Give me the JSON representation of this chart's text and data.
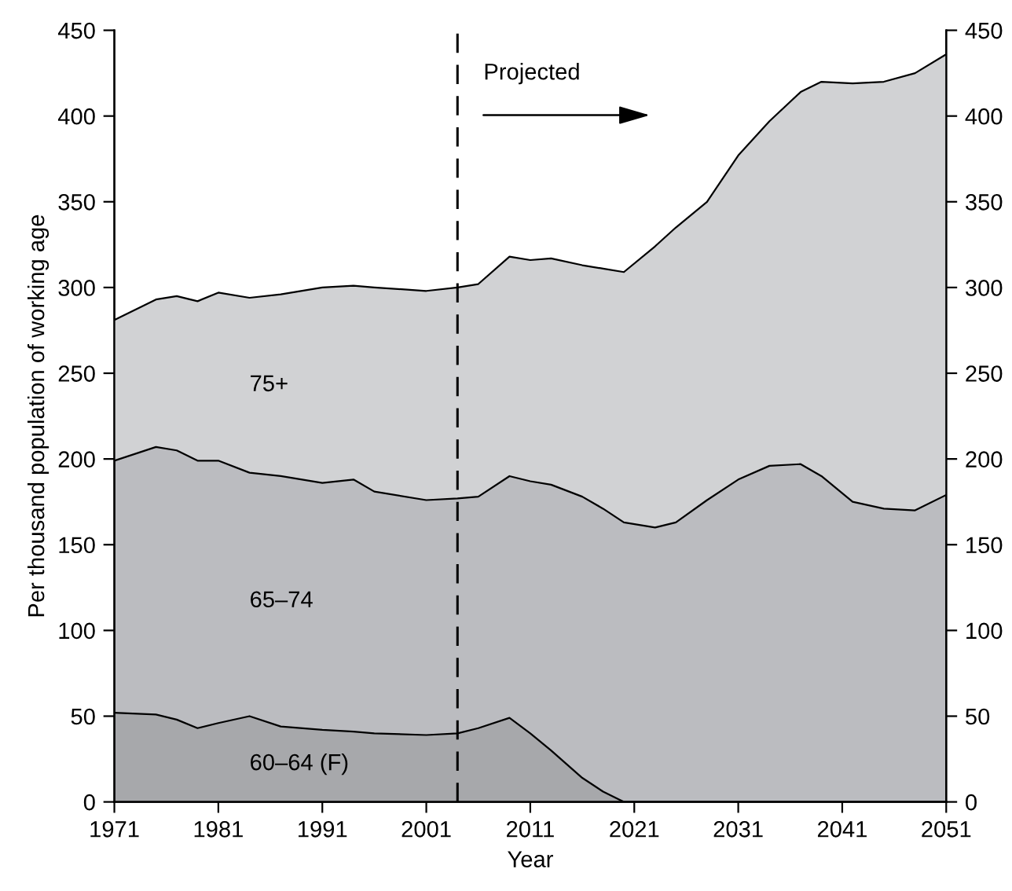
{
  "chart_data": {
    "type": "area",
    "stacked": true,
    "xlabel": "Year",
    "ylabel": "Per thousand population of working age",
    "x": [
      1971,
      1975,
      1977,
      1979,
      1981,
      1984,
      1987,
      1991,
      1994,
      1996,
      2001,
      2004,
      2006,
      2009,
      2011,
      2013,
      2016,
      2018,
      2020,
      2023,
      2025,
      2028,
      2031,
      2034,
      2037,
      2039,
      2042,
      2045,
      2048,
      2051
    ],
    "series": [
      {
        "name": "60–64 (F)",
        "color": "#a7a8ab",
        "values": [
          52,
          51,
          48,
          43,
          46,
          50,
          44,
          42,
          41,
          40,
          39,
          40,
          43,
          49,
          40,
          30,
          14,
          6,
          0,
          0,
          0,
          0,
          0,
          0,
          0,
          0,
          0,
          0,
          0,
          0
        ]
      },
      {
        "name": "65–74",
        "color": "#bbbcc0",
        "values": [
          147,
          156,
          157,
          156,
          153,
          142,
          146,
          144,
          147,
          141,
          137,
          137,
          135,
          141,
          147,
          155,
          164,
          165,
          163,
          160,
          163,
          176,
          188,
          196,
          197,
          190,
          175,
          171,
          170,
          179
        ]
      },
      {
        "name": "75+",
        "color": "#d1d2d4",
        "values": [
          82,
          86,
          90,
          93,
          98,
          102,
          106,
          114,
          113,
          119,
          122,
          123,
          124,
          128,
          129,
          132,
          135,
          140,
          146,
          164,
          172,
          174,
          189,
          201,
          217,
          230,
          244,
          249,
          255,
          257
        ]
      }
    ],
    "xlim": [
      1971,
      2051
    ],
    "xticks": [
      1971,
      1981,
      1991,
      2001,
      2011,
      2021,
      2031,
      2041,
      2051
    ],
    "ylim": [
      0,
      450
    ],
    "yticks": [
      0,
      50,
      100,
      150,
      200,
      250,
      300,
      350,
      400,
      450
    ],
    "y2lim": [
      0,
      450
    ],
    "y2ticks": [
      0,
      50,
      100,
      150,
      200,
      250,
      300,
      350,
      400,
      450
    ],
    "ref_lines": [
      {
        "axis": "x",
        "value": 2004,
        "label": "Projected",
        "line_style": "dashed",
        "color": "#000000"
      }
    ],
    "grid": false,
    "legend": false
  }
}
